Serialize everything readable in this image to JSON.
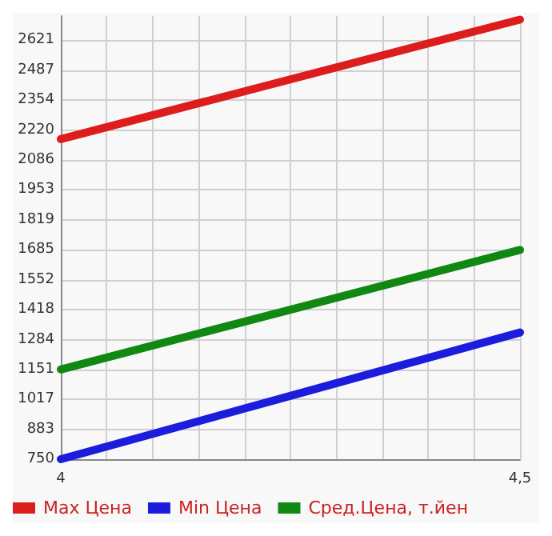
{
  "chart_data": {
    "type": "line",
    "x": [
      4,
      4.5
    ],
    "series": [
      {
        "name": "Max Цена",
        "color": "#dd1c1c",
        "values": [
          2180,
          2714
        ]
      },
      {
        "name": "Min Цена",
        "color": "#1c1cdd",
        "values": [
          750,
          1316
        ]
      },
      {
        "name": "Сред.Цена, т.йен",
        "color": "#118811",
        "values": [
          1151,
          1685
        ]
      }
    ],
    "xlim": [
      4,
      4.5
    ],
    "xticks": [
      4,
      {
        "value": 4.05,
        "label": null
      },
      {
        "value": 4.1,
        "label": null
      },
      {
        "value": 4.15,
        "label": null
      },
      {
        "value": 4.2,
        "label": null
      },
      {
        "value": 4.25,
        "label": null
      },
      {
        "value": 4.3,
        "label": null
      },
      {
        "value": 4.35,
        "label": null
      },
      {
        "value": 4.4,
        "label": null
      },
      {
        "value": 4.45,
        "label": null
      },
      {
        "value": 4.5,
        "label": "4,5"
      }
    ],
    "ylim": [
      750,
      2730
    ],
    "yticks": [
      750,
      883,
      1017,
      1151,
      1284,
      1418,
      1552,
      1685,
      1819,
      1953,
      2086,
      2220,
      2354,
      2487,
      2621
    ],
    "grid": true,
    "legend": "bottom",
    "marker": "none",
    "line_style": "solid"
  }
}
